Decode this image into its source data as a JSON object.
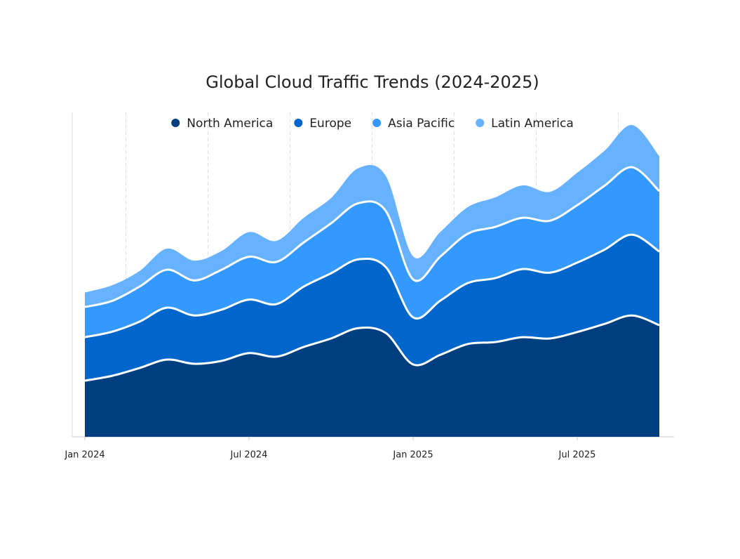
{
  "chart_data": {
    "type": "stacked-area",
    "title": "Global Cloud Traffic Trends (2024-2025)",
    "x": [
      "2024-01",
      "2024-02",
      "2024-03",
      "2024-04",
      "2024-05",
      "2024-06",
      "2024-07",
      "2024-08",
      "2024-09",
      "2024-10",
      "2024-11",
      "2024-12",
      "2025-01",
      "2025-02",
      "2025-03",
      "2025-04",
      "2025-05",
      "2025-06",
      "2025-07",
      "2025-08",
      "2025-09",
      "2025-10"
    ],
    "series": [
      {
        "name": "North America",
        "color": "#003f7f",
        "values": [
          17.3,
          18.8,
          21.2,
          23.8,
          22.5,
          23.4,
          25.8,
          24.7,
          27.7,
          30.3,
          33.5,
          32.0,
          22.3,
          25.3,
          28.6,
          29.2,
          30.7,
          30.3,
          32.3,
          34.8,
          37.4,
          34.4
        ]
      },
      {
        "name": "Europe",
        "color": "#0066cc",
        "values": [
          13.4,
          13.6,
          14.3,
          16.0,
          14.9,
          15.8,
          16.5,
          16.2,
          18.6,
          20.1,
          21.2,
          20.3,
          14.5,
          16.7,
          18.8,
          19.7,
          21.0,
          20.3,
          21.4,
          22.9,
          24.9,
          22.7
        ]
      },
      {
        "name": "Asia Pacific",
        "color": "#3399ff",
        "values": [
          9.3,
          9.5,
          10.8,
          11.7,
          10.8,
          12.3,
          13.2,
          13.0,
          13.6,
          15.4,
          17.3,
          17.3,
          11.7,
          13.6,
          15.2,
          15.8,
          15.8,
          16.0,
          17.7,
          19.7,
          20.8,
          18.6
        ]
      },
      {
        "name": "Latin America",
        "color": "#66b2ff",
        "values": [
          4.5,
          4.8,
          4.8,
          6.5,
          6.1,
          5.8,
          7.6,
          6.5,
          7.6,
          7.8,
          10.8,
          10.8,
          7.1,
          7.6,
          8.2,
          9.1,
          10.0,
          8.9,
          10.0,
          10.8,
          13.0,
          10.8
        ]
      }
    ],
    "ylim": [
      0,
      100
    ],
    "xticks": [
      {
        "value": "2024-01",
        "label": "Jan 2024"
      },
      {
        "value": "2024-07",
        "label": "Jul 2024"
      },
      {
        "value": "2025-01",
        "label": "Jan 2025"
      },
      {
        "value": "2025-07",
        "label": "Jul 2025"
      }
    ],
    "grid": true,
    "legend": "top"
  }
}
